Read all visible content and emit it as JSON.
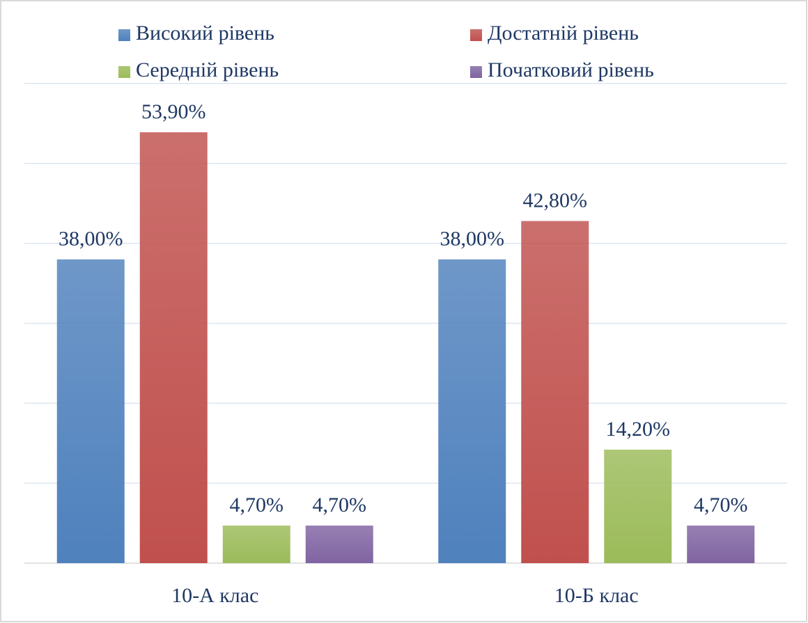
{
  "chart_data": {
    "type": "bar",
    "categories": [
      "10-А клас",
      "10-Б клас"
    ],
    "series": [
      {
        "name": "Високий рівень",
        "color": "#4f81bd",
        "values": [
          38,
          38
        ],
        "value_labels": [
          "38,00%",
          "38,00%"
        ]
      },
      {
        "name": "Достатній рівень",
        "color": "#c0504d",
        "values": [
          53.9,
          42.8
        ],
        "value_labels": [
          "53,90%",
          "42,80%"
        ]
      },
      {
        "name": "Середній рівень",
        "color": "#9bbb59",
        "values": [
          4.7,
          14.2
        ],
        "value_labels": [
          "4,70%",
          "14,20%"
        ]
      },
      {
        "name": "Початковий рівень",
        "color": "#8064a2",
        "values": [
          4.7,
          4.7
        ],
        "value_labels": [
          "4,70%",
          "4,70%"
        ]
      }
    ],
    "ylim": [
      0,
      60
    ],
    "yticks": [
      0,
      10,
      20,
      30,
      40,
      50,
      60
    ],
    "grid": true,
    "legend": "top"
  }
}
